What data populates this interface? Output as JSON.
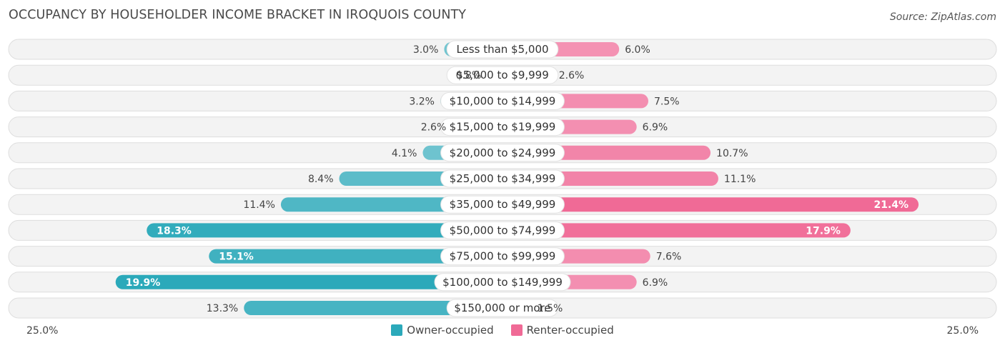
{
  "title": "OCCUPANCY BY HOUSEHOLDER INCOME BRACKET IN IROQUOIS COUNTY",
  "source": "Source: ZipAtlas.com",
  "colors": {
    "owner": "#2ba9ba",
    "owner_light": "#7fcad4",
    "renter": "#f06a96",
    "renter_light": "#f5a3bf"
  },
  "legend": {
    "owner_label": "Owner-occupied",
    "renter_label": "Renter-occupied"
  },
  "axis": {
    "left_label": "25.0%",
    "right_label": "25.0%"
  },
  "chart_data": {
    "type": "bar",
    "orientation": "horizontal-diverging",
    "title": "OCCUPANCY BY HOUSEHOLDER INCOME BRACKET IN IROQUOIS COUNTY",
    "xlim": [
      -25,
      25
    ],
    "categories": [
      "Less than $5,000",
      "$5,000 to $9,999",
      "$10,000 to $14,999",
      "$15,000 to $19,999",
      "$20,000 to $24,999",
      "$25,000 to $34,999",
      "$35,000 to $49,999",
      "$50,000 to $74,999",
      "$75,000 to $99,999",
      "$100,000 to $149,999",
      "$150,000 or more"
    ],
    "series": [
      {
        "name": "Owner-occupied",
        "values": [
          3.0,
          0.8,
          3.2,
          2.6,
          4.1,
          8.4,
          11.4,
          18.3,
          15.1,
          19.9,
          13.3
        ]
      },
      {
        "name": "Renter-occupied",
        "values": [
          6.0,
          2.6,
          7.5,
          6.9,
          10.7,
          11.1,
          21.4,
          17.9,
          7.6,
          6.9,
          1.5
        ]
      }
    ],
    "legend_position": "bottom-center"
  }
}
